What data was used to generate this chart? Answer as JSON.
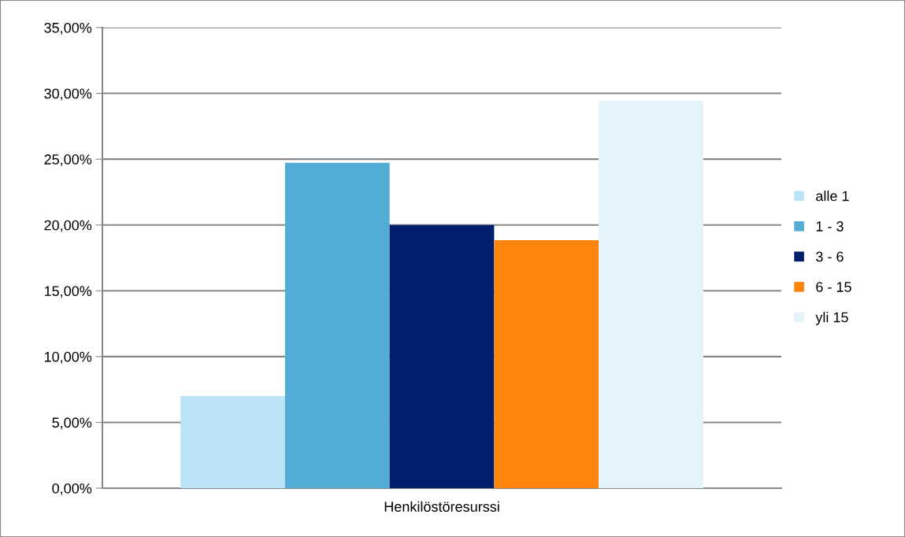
{
  "chart_data": {
    "type": "bar",
    "categories": [
      "Henkilöstöresurssi"
    ],
    "series": [
      {
        "name": "alle 1",
        "color": "#bbe3f6",
        "values": [
          7.0
        ]
      },
      {
        "name": "1 - 3",
        "color": "#52acd5",
        "values": [
          24.73
        ]
      },
      {
        "name": "3 - 6",
        "color": "#001f6c",
        "values": [
          20.0
        ]
      },
      {
        "name": "6 - 15",
        "color": "#ff840e",
        "values": [
          18.84
        ]
      },
      {
        "name": "yli 15",
        "color": "#e5f3fb",
        "values": [
          29.43
        ]
      }
    ],
    "ylim": [
      0,
      35
    ],
    "yticks": [
      {
        "value": 0,
        "label": "0,00%"
      },
      {
        "value": 5,
        "label": "5,00%"
      },
      {
        "value": 10,
        "label": "10,00%"
      },
      {
        "value": 15,
        "label": "15,00%"
      },
      {
        "value": 20,
        "label": "20,00%"
      },
      {
        "value": 25,
        "label": "25,00%"
      },
      {
        "value": 30,
        "label": "30,00%"
      },
      {
        "value": 35,
        "label": "35,00%"
      }
    ],
    "grid": "y",
    "legend": "right"
  }
}
